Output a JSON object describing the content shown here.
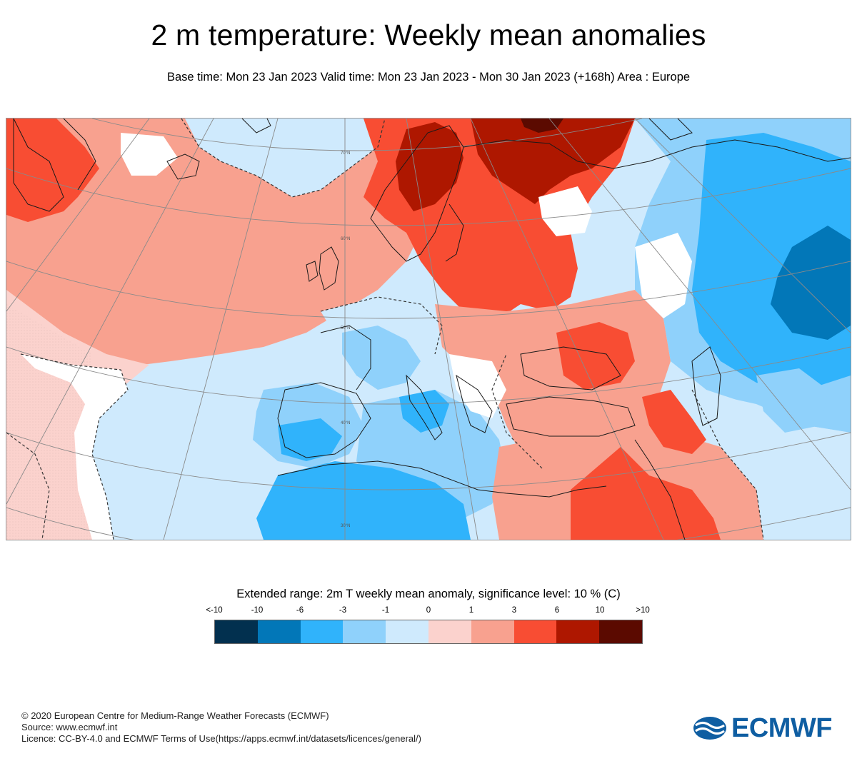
{
  "header": {
    "title": "2 m temperature: Weekly mean anomalies",
    "subtitle": "Base time: Mon 23 Jan 2023 Valid time: Mon 23 Jan 2023 - Mon 30 Jan 2023 (+168h) Area : Europe"
  },
  "map": {
    "area": "Europe",
    "graticule_labels": [
      "70°N",
      "60°N",
      "50°N",
      "40°N",
      "30°N"
    ],
    "anomaly_regions": [
      {
        "region": "Greenland / Norwegian Sea",
        "category": "3 to 6"
      },
      {
        "region": "North Atlantic",
        "category": "1 to 3"
      },
      {
        "region": "Scandinavia",
        "category": "6 to 10"
      },
      {
        "region": "Northwest Russia",
        "category": "6 to >10"
      },
      {
        "region": "Eastern Europe / Balkans / Turkey",
        "category": "3 to 6"
      },
      {
        "region": "Iberia / Western Mediterranean / North Africa",
        "category": "-6 to -1"
      },
      {
        "region": "Egypt / Middle East",
        "category": "3 to 6"
      },
      {
        "region": "Western Siberia / Urals",
        "category": "-10 to -3"
      }
    ]
  },
  "legend": {
    "title": "Extended range: 2m T weekly mean anomaly, significance level: 10 % (C)",
    "tick_labels": [
      "<-10",
      "-10",
      "-6",
      "-3",
      "-1",
      "0",
      "1",
      "3",
      "6",
      "10",
      ">10"
    ],
    "bins": [
      {
        "label": "< -10",
        "color": "#02304f"
      },
      {
        "label": "-10 to -6",
        "color": "#0277b8"
      },
      {
        "label": "-6 to -3",
        "color": "#30b3fb"
      },
      {
        "label": "-3 to -1",
        "color": "#8fd1fb"
      },
      {
        "label": "-1 to 0",
        "color": "#cfeafd"
      },
      {
        "label": "0 to 1",
        "color": "#fbd2cd"
      },
      {
        "label": "1 to 3",
        "color": "#f8a18f"
      },
      {
        "label": "3 to 6",
        "color": "#f84d33"
      },
      {
        "label": "6 to 10",
        "color": "#ae1700"
      },
      {
        "label": "> 10",
        "color": "#5b0a00"
      }
    ]
  },
  "footer": {
    "copyright": "© 2020 European Centre for Medium-Range Weather Forecasts (ECMWF)",
    "source": "Source: www.ecmwf.int",
    "licence": "Licence: CC-BY-4.0 and ECMWF Terms of Use(https://apps.ecmwf.int/datasets/licences/general/)"
  },
  "logo": {
    "text": "ECMWF",
    "color": "#0f5ea2"
  }
}
